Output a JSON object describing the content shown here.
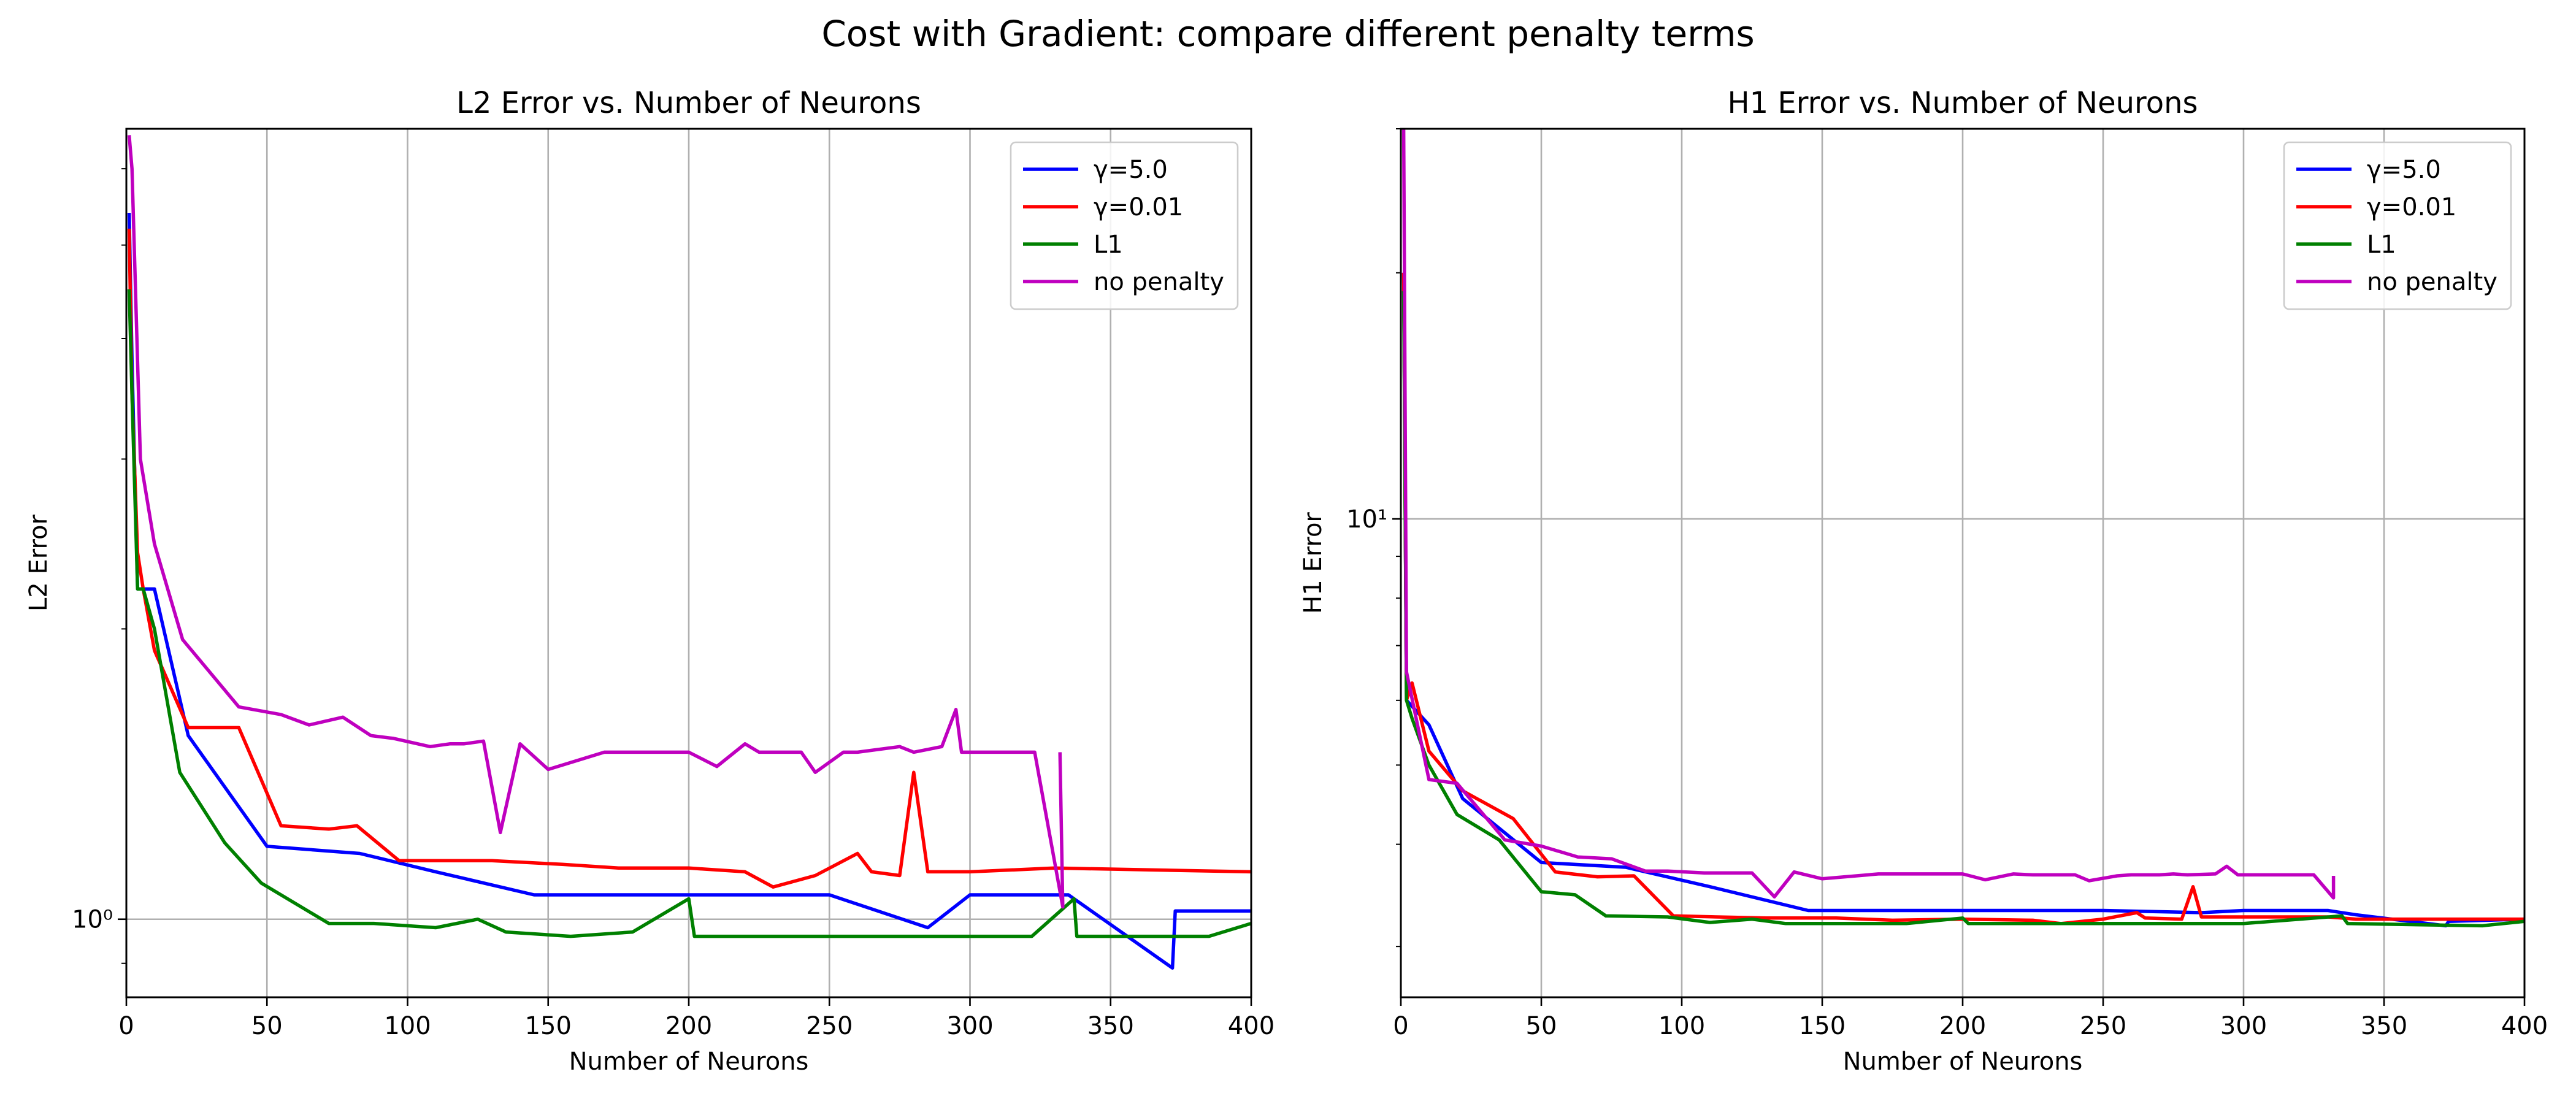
{
  "figure": {
    "suptitle": "Cost with Gradient: compare different penalty terms"
  },
  "chart_data": [
    {
      "type": "line",
      "title": "L2 Error vs. Number of Neurons",
      "xlabel": "Number of Neurons",
      "ylabel": "L2 Error",
      "xlim": [
        0,
        400
      ],
      "ylim": [
        0.83,
        6.6
      ],
      "yscale": "log",
      "grid": true,
      "legend_position": "top-right",
      "xticks": [
        0,
        50,
        100,
        150,
        200,
        250,
        300,
        350,
        400
      ],
      "xtick_labels": [
        "0",
        "50",
        "100",
        "150",
        "200",
        "250",
        "300",
        "350",
        "400"
      ],
      "yticks": [
        1
      ],
      "ytick_labels": [
        "10⁰"
      ],
      "yminor_ticks": [
        0.9,
        2,
        3,
        4,
        5,
        6
      ],
      "series": [
        {
          "name": "γ=5.0",
          "color": "#0000ff",
          "x": [
            1,
            2,
            4,
            6,
            10,
            22,
            50,
            83,
            110,
            145,
            180,
            250,
            285,
            300,
            335,
            372,
            373,
            400
          ],
          "y": [
            5.4,
            3.8,
            2.2,
            2.2,
            2.2,
            1.55,
            1.19,
            1.17,
            1.12,
            1.06,
            1.06,
            1.06,
            0.98,
            1.06,
            1.06,
            0.89,
            1.02,
            1.02
          ]
        },
        {
          "name": "γ=0.01",
          "color": "#ff0000",
          "x": [
            1,
            2,
            4,
            6,
            10,
            22,
            40,
            55,
            72,
            82,
            97,
            130,
            155,
            175,
            200,
            220,
            230,
            245,
            260,
            265,
            275,
            280,
            285,
            300,
            330,
            400
          ],
          "y": [
            5.2,
            3.5,
            2.4,
            2.2,
            1.9,
            1.58,
            1.58,
            1.25,
            1.24,
            1.25,
            1.15,
            1.15,
            1.14,
            1.13,
            1.13,
            1.12,
            1.08,
            1.11,
            1.17,
            1.12,
            1.11,
            1.42,
            1.12,
            1.12,
            1.13,
            1.12
          ]
        },
        {
          "name": "L1",
          "color": "#008000",
          "x": [
            1,
            2,
            4,
            6,
            10,
            19,
            35,
            48,
            72,
            88,
            110,
            125,
            135,
            158,
            180,
            200,
            202,
            250,
            300,
            322,
            337,
            338,
            385,
            400
          ],
          "y": [
            4.5,
            3.5,
            2.2,
            2.2,
            2.0,
            1.42,
            1.2,
            1.09,
            0.99,
            0.99,
            0.98,
            1.0,
            0.97,
            0.96,
            0.97,
            1.05,
            0.96,
            0.96,
            0.96,
            0.96,
            1.05,
            0.96,
            0.96,
            0.99
          ]
        },
        {
          "name": "no penalty",
          "color": "#bf00bf",
          "x": [
            1,
            2,
            5,
            10,
            20,
            40,
            55,
            65,
            77,
            87,
            95,
            108,
            115,
            120,
            127,
            133,
            140,
            150,
            170,
            180,
            200,
            210,
            220,
            225,
            240,
            245,
            255,
            260,
            275,
            280,
            290,
            295,
            297,
            305,
            323,
            333,
            332
          ],
          "y": [
            6.5,
            6.0,
            3.0,
            2.45,
            1.95,
            1.66,
            1.63,
            1.59,
            1.62,
            1.55,
            1.54,
            1.51,
            1.52,
            1.52,
            1.53,
            1.23,
            1.52,
            1.43,
            1.49,
            1.49,
            1.49,
            1.44,
            1.52,
            1.49,
            1.49,
            1.42,
            1.49,
            1.49,
            1.51,
            1.49,
            1.51,
            1.65,
            1.49,
            1.49,
            1.49,
            1.03,
            1.49
          ]
        }
      ]
    },
    {
      "type": "line",
      "title": "H1 Error vs. Number of Neurons",
      "xlabel": "Number of Neurons",
      "ylabel": "H1 Error",
      "xlim": [
        0,
        400
      ],
      "ylim": [
        2.6,
        30
      ],
      "yscale": "log",
      "grid": true,
      "legend_position": "top-right",
      "xticks": [
        0,
        50,
        100,
        150,
        200,
        250,
        300,
        350,
        400
      ],
      "xtick_labels": [
        "0",
        "50",
        "100",
        "150",
        "200",
        "250",
        "300",
        "350",
        "400"
      ],
      "yticks": [
        10
      ],
      "ytick_labels": [
        "10¹"
      ],
      "yminor_ticks": [
        3,
        4,
        5,
        6,
        7,
        8,
        9,
        20,
        30
      ],
      "series": [
        {
          "name": "γ=5.0",
          "color": "#0000ff",
          "x": [
            1,
            2,
            4,
            10,
            22,
            50,
            80,
            110,
            145,
            200,
            250,
            285,
            300,
            330,
            340,
            372,
            373,
            400
          ],
          "y": [
            20,
            6.0,
            5.9,
            5.6,
            4.55,
            3.8,
            3.75,
            3.55,
            3.32,
            3.32,
            3.32,
            3.3,
            3.32,
            3.32,
            3.28,
            3.18,
            3.22,
            3.24
          ]
        },
        {
          "name": "γ=0.01",
          "color": "#ff0000",
          "x": [
            1,
            2,
            4,
            10,
            22,
            40,
            55,
            70,
            83,
            97,
            130,
            155,
            175,
            200,
            225,
            235,
            250,
            262,
            265,
            278,
            282,
            285,
            300,
            330,
            340,
            400
          ],
          "y": [
            20,
            6.0,
            6.3,
            5.2,
            4.65,
            4.3,
            3.7,
            3.65,
            3.66,
            3.27,
            3.25,
            3.25,
            3.23,
            3.24,
            3.23,
            3.2,
            3.24,
            3.3,
            3.25,
            3.24,
            3.55,
            3.26,
            3.26,
            3.26,
            3.24,
            3.24
          ]
        },
        {
          "name": "L1",
          "color": "#008000",
          "x": [
            1,
            2,
            4,
            10,
            20,
            35,
            50,
            62,
            73,
            95,
            110,
            125,
            137,
            160,
            180,
            200,
            202,
            250,
            300,
            335,
            337,
            385,
            400
          ],
          "y": [
            19,
            6.0,
            5.7,
            5.0,
            4.35,
            4.05,
            3.5,
            3.47,
            3.27,
            3.26,
            3.21,
            3.24,
            3.2,
            3.2,
            3.2,
            3.25,
            3.2,
            3.2,
            3.2,
            3.27,
            3.2,
            3.18,
            3.22
          ]
        },
        {
          "name": "no penalty",
          "color": "#bf00bf",
          "x": [
            1,
            2,
            5,
            10,
            20,
            37,
            50,
            63,
            75,
            87,
            95,
            108,
            125,
            133,
            140,
            150,
            170,
            190,
            200,
            208,
            218,
            225,
            240,
            245,
            255,
            260,
            270,
            275,
            280,
            290,
            294,
            298,
            310,
            325,
            332,
            332
          ],
          "y": [
            30,
            6.5,
            5.8,
            4.8,
            4.75,
            4.05,
            3.98,
            3.86,
            3.84,
            3.71,
            3.71,
            3.69,
            3.69,
            3.45,
            3.7,
            3.63,
            3.68,
            3.68,
            3.68,
            3.62,
            3.68,
            3.67,
            3.67,
            3.61,
            3.66,
            3.67,
            3.67,
            3.68,
            3.67,
            3.68,
            3.76,
            3.67,
            3.67,
            3.67,
            3.44,
            3.66
          ]
        }
      ]
    }
  ]
}
